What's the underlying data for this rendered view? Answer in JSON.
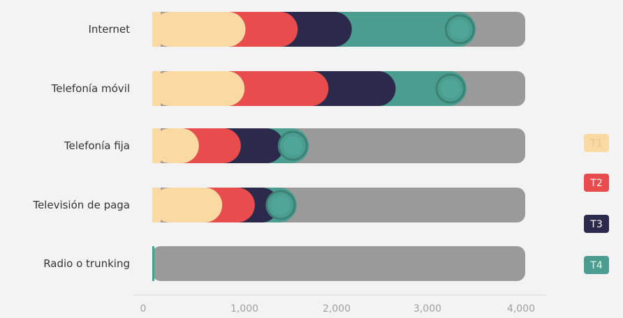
{
  "chart_data": {
    "type": "bar",
    "stacked": true,
    "orientation": "horizontal",
    "categories": [
      "Internet",
      "Telefonía móvil",
      "Telefonía fija",
      "Televisión de paga",
      "Radio o trunking"
    ],
    "series": [
      {
        "name": "T1",
        "values": [
          1000,
          990,
          500,
          750,
          0
        ]
      },
      {
        "name": "T2",
        "values": [
          560,
          900,
          450,
          350,
          0
        ]
      },
      {
        "name": "T3",
        "values": [
          580,
          720,
          460,
          260,
          0
        ]
      },
      {
        "name": "T4",
        "values": [
          1330,
          760,
          270,
          190,
          20
        ]
      }
    ],
    "max_value": 4000,
    "xlim": [
      0,
      4000
    ],
    "x_ticks": [
      "0",
      "1,000",
      "2,000",
      "3,000",
      "4,000"
    ],
    "legend_position": "right",
    "grid": false,
    "colors": {
      "T1": "#fbd9a3",
      "T2": "#e84c4c",
      "T3": "#2b2a4c",
      "T4": "#4a9d8f",
      "track": "#9a9a9a",
      "axis": "#d9d9d9",
      "text": "#333333",
      "tick_text": "#a0a0a0",
      "legend_T1_text": "#e7c48d",
      "legend_T2_text": "#ffffff",
      "legend_T3_text": "#ffffff",
      "legend_T4_text": "#e8f3f1"
    }
  }
}
